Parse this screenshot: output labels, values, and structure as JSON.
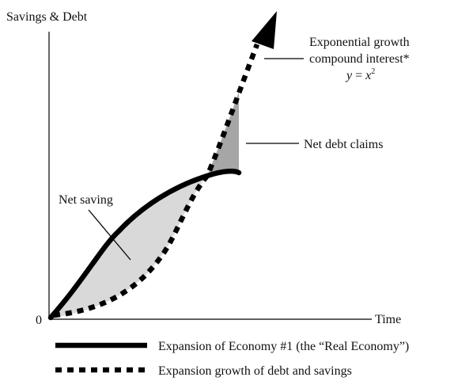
{
  "axes": {
    "y_label": "Savings & Debt",
    "x_label": "Time",
    "origin_label": "0"
  },
  "annotations": {
    "exponential_line1": "Exponential growth",
    "exponential_line2": "compound interest*",
    "equation_y": "y",
    "equation_eq": " = ",
    "equation_x": "x",
    "equation_exp": "2",
    "net_debt_claims": "Net debt claims",
    "net_saving": "Net saving"
  },
  "legend": {
    "items": [
      {
        "label": "Expansion of Economy #1 (the “Real Economy”)",
        "style": "solid"
      },
      {
        "label": "Expansion growth of debt and savings",
        "style": "dotted"
      }
    ]
  },
  "colors": {
    "ink": "#000000",
    "net_saving_fill": "#d9d9d9",
    "net_debt_fill": "#a6a6a6"
  }
}
